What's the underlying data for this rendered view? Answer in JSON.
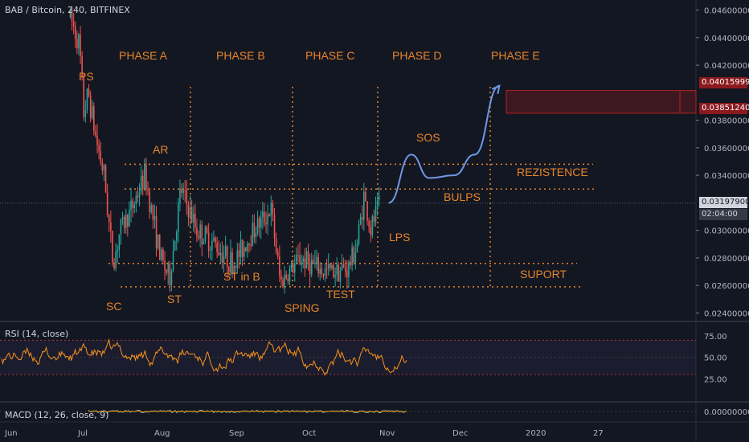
{
  "header": {
    "symbol": "BAB / Bitcoin",
    "interval": "240",
    "exchange": "BITFINEX"
  },
  "colors": {
    "background": "#131722",
    "annotation": "#e8842a",
    "candle_up": "#26a69a",
    "candle_down": "#ef5350",
    "forecast": "#6e98e6",
    "target_zone": "#8b1a1f",
    "rsi": "#f7931a",
    "macd": "#4fc3f7",
    "signal": "#ff9800"
  },
  "price_axis": {
    "ticks": [
      "0.04600000",
      "0.04400000",
      "0.04200000",
      "0.03800000",
      "0.03600000",
      "0.03400000",
      "0.03000000",
      "0.02800000",
      "0.02600000",
      "0.02400000"
    ],
    "last_price": "0.03197900",
    "countdown": "02:04:00",
    "target_high": "0.04015999",
    "target_low": "0.03851240"
  },
  "time_axis": {
    "labels": [
      "Jun",
      "Jul",
      "Aug",
      "Sep",
      "Oct",
      "Nov",
      "Dec",
      "2020",
      "27"
    ]
  },
  "phases": [
    "PHASE A",
    "PHASE B",
    "PHASE C",
    "PHASE D",
    "PHASE E"
  ],
  "annotations": {
    "ps": "PS",
    "ar": "AR",
    "sc": "SC",
    "st": "ST",
    "st_in_b": "ST in B",
    "sping": "SPING",
    "test": "TEST",
    "lps": "LPS",
    "sos": "SOS",
    "bulps": "BULPS",
    "rezistence": "REZISTENCE",
    "suport": "SUPORT"
  },
  "rsi": {
    "label": "RSI (14, close)",
    "ticks": [
      "75.00",
      "50.00",
      "25.00"
    ]
  },
  "macd": {
    "label": "MACD (12, 26, close, 9)",
    "ticks": [
      "0.00000000"
    ]
  },
  "chart_data": {
    "type": "candlestick",
    "title": "BAB / Bitcoin, 240, BITFINEX",
    "ylim": [
      0.0235,
      0.0465
    ],
    "x_months": [
      "Jun",
      "Jul",
      "Aug",
      "Sep",
      "Oct",
      "Nov",
      "Dec",
      "2020",
      "27"
    ],
    "price_path": [
      {
        "date": "Jun 25",
        "price": 0.0455
      },
      {
        "date": "Jun 29",
        "price": 0.0435
      },
      {
        "date": "Jul 1",
        "price": 0.0385
      },
      {
        "date": "Jul 3",
        "price": 0.04
      },
      {
        "date": "Jul 6",
        "price": 0.037
      },
      {
        "date": "Jul 10",
        "price": 0.034
      },
      {
        "date": "Jul 14",
        "price": 0.0275
      },
      {
        "date": "Jul 17",
        "price": 0.03
      },
      {
        "date": "Jul 22",
        "price": 0.0315
      },
      {
        "date": "Jul 28",
        "price": 0.034
      },
      {
        "date": "Aug 4",
        "price": 0.028
      },
      {
        "date": "Aug 8",
        "price": 0.0265
      },
      {
        "date": "Aug 13",
        "price": 0.033
      },
      {
        "date": "Aug 20",
        "price": 0.03
      },
      {
        "date": "Aug 28",
        "price": 0.029
      },
      {
        "date": "Sep 5",
        "price": 0.0275
      },
      {
        "date": "Sep 14",
        "price": 0.03
      },
      {
        "date": "Sep 22",
        "price": 0.0315
      },
      {
        "date": "Sep 26",
        "price": 0.0262
      },
      {
        "date": "Oct 5",
        "price": 0.028
      },
      {
        "date": "Oct 15",
        "price": 0.027
      },
      {
        "date": "Oct 26",
        "price": 0.0272
      },
      {
        "date": "Oct 30",
        "price": 0.029
      },
      {
        "date": "Nov 2",
        "price": 0.0325
      },
      {
        "date": "Nov 5",
        "price": 0.03
      },
      {
        "date": "Nov 9",
        "price": 0.032
      }
    ],
    "levels": {
      "resistance_upper": 0.0348,
      "resistance": 0.033,
      "support": 0.0276,
      "support_lower": 0.0259
    },
    "forecast_path": [
      {
        "date": "Nov 13",
        "price": 0.032
      },
      {
        "date": "Nov 23",
        "price": 0.0355
      },
      {
        "date": "Dec 1",
        "price": 0.0338
      },
      {
        "date": "Dec 12",
        "price": 0.034
      },
      {
        "date": "Dec 21",
        "price": 0.0355
      },
      {
        "date": "Jan 1",
        "price": 0.0405
      }
    ],
    "rsi_range": [
      30,
      80
    ],
    "rsi_last": 52
  }
}
